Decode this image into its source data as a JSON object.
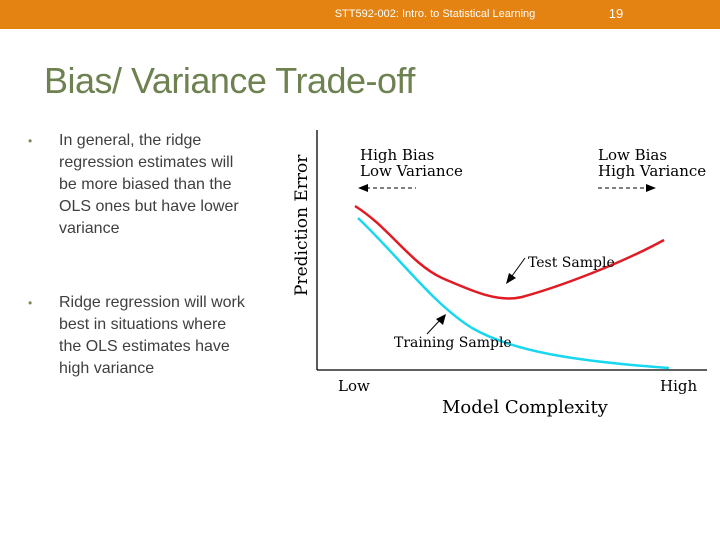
{
  "header": {
    "course": "STT592-002: Intro. to Statistical Learning",
    "page_number": "19",
    "bar_color": "#e48312"
  },
  "slide": {
    "title": "Bias/ Variance Trade-off",
    "bullets": [
      {
        "marker": "•",
        "text": "In general, the ridge regression estimates will be more biased than the OLS ones but have lower variance"
      },
      {
        "marker": "•",
        "text": "Ridge regression will work best in situations where the OLS estimates have high variance"
      }
    ]
  },
  "figure": {
    "y_axis_label": "Prediction Error",
    "x_axis_label": "Model Complexity",
    "x_low_label": "Low",
    "x_high_label": "High",
    "left_region": {
      "line1": "High Bias",
      "line2": "Low Variance"
    },
    "right_region": {
      "line1": "Low Bias",
      "line2": "High Variance"
    },
    "test_label": "Test Sample",
    "training_label": "Training Sample",
    "test_color": "#e01b24",
    "training_color": "#19d7ef"
  }
}
